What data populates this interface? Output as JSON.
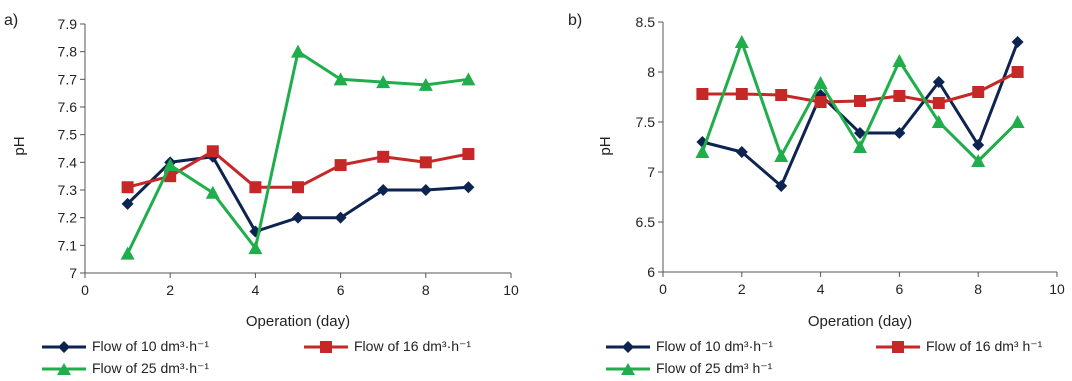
{
  "chart_data": [
    {
      "panel_label": "a)",
      "type": "line",
      "xlabel": "Operation (day)",
      "ylabel": "pH",
      "xlim": [
        0,
        10
      ],
      "ylim": [
        7.0,
        7.9
      ],
      "xticks": [
        "0",
        "2",
        "4",
        "6",
        "8",
        "10"
      ],
      "yticks": [
        "7",
        "7.1",
        "7.2",
        "7.3",
        "7.4",
        "7.5",
        "7.6",
        "7.7",
        "7.8",
        "7.9"
      ],
      "grid": false,
      "legend_position": "bottom",
      "series": [
        {
          "name": "Flow of 10 dm³·h⁻¹",
          "color": "#0d2350",
          "marker": "diamond",
          "x": [
            1,
            2,
            3,
            4,
            5,
            6,
            7,
            8,
            9
          ],
          "y": [
            7.25,
            7.4,
            7.42,
            7.15,
            7.2,
            7.2,
            7.3,
            7.3,
            7.31
          ]
        },
        {
          "name": "Flow of 16 dm³·h⁻¹",
          "color": "#c62828",
          "marker": "square",
          "x": [
            1,
            2,
            3,
            4,
            5,
            6,
            7,
            8,
            9
          ],
          "y": [
            7.31,
            7.35,
            7.44,
            7.31,
            7.31,
            7.39,
            7.42,
            7.4,
            7.43
          ]
        },
        {
          "name": "Flow of 25 dm³·h⁻¹",
          "color": "#1fae4b",
          "marker": "triangle",
          "x": [
            1,
            2,
            3,
            4,
            5,
            6,
            7,
            8,
            9
          ],
          "y": [
            7.07,
            7.39,
            7.29,
            7.09,
            7.8,
            7.7,
            7.69,
            7.68,
            7.7
          ]
        }
      ]
    },
    {
      "panel_label": "b)",
      "type": "line",
      "xlabel": "Operation (day)",
      "ylabel": "pH",
      "xlim": [
        0,
        10
      ],
      "ylim": [
        6.0,
        8.5
      ],
      "xticks": [
        "0",
        "2",
        "4",
        "6",
        "8",
        "10"
      ],
      "yticks": [
        "6",
        "6.5",
        "7",
        "7.5",
        "8",
        "8.5"
      ],
      "grid": false,
      "legend_position": "bottom",
      "series": [
        {
          "name": "Flow of 10 dm³·h⁻¹",
          "color": "#0d2350",
          "marker": "diamond",
          "x": [
            1,
            2,
            3,
            4,
            5,
            6,
            7,
            8,
            9
          ],
          "y": [
            7.3,
            7.2,
            6.86,
            7.77,
            7.39,
            7.39,
            7.9,
            7.27,
            8.3
          ]
        },
        {
          "name": "Flow of 16 dm³ h⁻¹",
          "color": "#c62828",
          "marker": "square",
          "x": [
            1,
            2,
            3,
            4,
            5,
            6,
            7,
            8,
            9
          ],
          "y": [
            7.78,
            7.78,
            7.77,
            7.7,
            7.71,
            7.76,
            7.69,
            7.8,
            8.0
          ]
        },
        {
          "name": "Flow of 25 dm³ h⁻¹",
          "color": "#1fae4b",
          "marker": "triangle",
          "x": [
            1,
            2,
            3,
            4,
            5,
            6,
            7,
            8,
            9
          ],
          "y": [
            7.2,
            8.3,
            7.16,
            7.89,
            7.25,
            8.11,
            7.5,
            7.11,
            7.5
          ]
        }
      ]
    }
  ]
}
